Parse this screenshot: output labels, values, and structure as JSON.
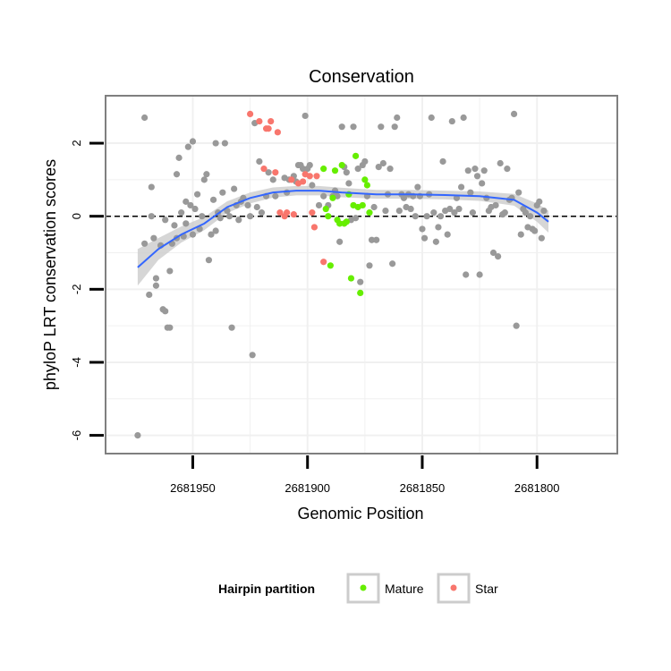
{
  "chart_data": {
    "type": "scatter",
    "title": "Conservation",
    "xlabel": "Genomic Position",
    "ylabel": "phyloP LRT conservation scores",
    "x_reversed": true,
    "xlim": [
      2681988,
      2681765
    ],
    "ylim": [
      -6.5,
      3.3
    ],
    "x_ticks": [
      2681950,
      2681900,
      2681850,
      2681800
    ],
    "x_tick_labels": [
      "2681950",
      "2681900",
      "2681850",
      "2681800"
    ],
    "y_ticks": [
      -6,
      -4,
      -2,
      0,
      2
    ],
    "y_tick_labels": [
      "-6",
      "-4",
      "-2",
      "0",
      "2"
    ],
    "reference_line": {
      "y": 0,
      "style": "dashed",
      "color": "#000000"
    },
    "legend": {
      "title": "Hairpin partition",
      "position": "bottom",
      "entries": [
        {
          "label": "Mature",
          "color": "#66ee00"
        },
        {
          "label": "Star",
          "color": "#f8766d"
        }
      ]
    },
    "colors": {
      "other": "#999999",
      "Mature": "#66ee00",
      "Star": "#f8766d",
      "smooth_line": "#3366ff",
      "smooth_band": "#cccccc",
      "panel_grid": "#f0f0f0",
      "panel_border": "#7f7f7f"
    },
    "grid": true,
    "series": [
      {
        "group": "other",
        "points": [
          [
            2681974,
            -6.0
          ],
          [
            2681971,
            2.7
          ],
          [
            2681971,
            -0.75
          ],
          [
            2681969,
            -2.15
          ],
          [
            2681968,
            0.8
          ],
          [
            2681968,
            0.0
          ],
          [
            2681967,
            -0.6
          ],
          [
            2681966,
            -1.9
          ],
          [
            2681966,
            -1.7
          ],
          [
            2681964,
            -0.8
          ],
          [
            2681963,
            -2.55
          ],
          [
            2681962,
            -2.6
          ],
          [
            2681962,
            -0.1
          ],
          [
            2681961,
            -3.05
          ],
          [
            2681960,
            -3.05
          ],
          [
            2681960,
            -1.5
          ],
          [
            2681959,
            -0.75
          ],
          [
            2681958,
            -0.25
          ],
          [
            2681957,
            -0.6
          ],
          [
            2681957,
            1.15
          ],
          [
            2681956,
            1.6
          ],
          [
            2681955,
            0.1
          ],
          [
            2681954,
            -0.55
          ],
          [
            2681953,
            -0.2
          ],
          [
            2681953,
            0.4
          ],
          [
            2681952,
            1.9
          ],
          [
            2681951,
            0.3
          ],
          [
            2681950,
            -0.5
          ],
          [
            2681950,
            2.05
          ],
          [
            2681949,
            0.2
          ],
          [
            2681948,
            0.6
          ],
          [
            2681947,
            -0.35
          ],
          [
            2681946,
            0.0
          ],
          [
            2681945,
            1.0
          ],
          [
            2681944,
            1.15
          ],
          [
            2681943,
            -1.2
          ],
          [
            2681942,
            -0.5
          ],
          [
            2681941,
            0.45
          ],
          [
            2681940,
            2.0
          ],
          [
            2681940,
            -0.4
          ],
          [
            2681939,
            0.1
          ],
          [
            2681938,
            -0.05
          ],
          [
            2681937,
            0.65
          ],
          [
            2681936,
            2.0
          ],
          [
            2681935,
            0.15
          ],
          [
            2681934,
            0.0
          ],
          [
            2681933,
            -3.05
          ],
          [
            2681932,
            0.75
          ],
          [
            2681931,
            0.3
          ],
          [
            2681930,
            -0.1
          ],
          [
            2681929,
            0.4
          ],
          [
            2681928,
            0.5
          ],
          [
            2681926,
            0.3
          ],
          [
            2681925,
            0.0
          ],
          [
            2681924,
            -3.8
          ],
          [
            2681923,
            2.55
          ],
          [
            2681922,
            0.25
          ],
          [
            2681921,
            1.5
          ],
          [
            2681920,
            0.1
          ],
          [
            2681918,
            0.55
          ],
          [
            2681917,
            1.2
          ],
          [
            2681915,
            1.0
          ],
          [
            2681914,
            0.55
          ],
          [
            2681910,
            1.05
          ],
          [
            2681909,
            0.65
          ],
          [
            2681908,
            1.0
          ],
          [
            2681906,
            1.1
          ],
          [
            2681905,
            0.95
          ],
          [
            2681904,
            1.4
          ],
          [
            2681903,
            1.4
          ],
          [
            2681902,
            1.3
          ],
          [
            2681901,
            2.75
          ],
          [
            2681900,
            1.3
          ],
          [
            2681899,
            1.4
          ],
          [
            2681898,
            0.85
          ],
          [
            2681895,
            0.3
          ],
          [
            2681893,
            0.55
          ],
          [
            2681891,
            0.3
          ],
          [
            2681889,
            0.55
          ],
          [
            2681888,
            0.7
          ],
          [
            2681887,
            0.55
          ],
          [
            2681886,
            -0.7
          ],
          [
            2681885,
            2.45
          ],
          [
            2681884,
            1.35
          ],
          [
            2681883,
            1.2
          ],
          [
            2681882,
            0.9
          ],
          [
            2681881,
            -0.1
          ],
          [
            2681880,
            2.45
          ],
          [
            2681879,
            -0.05
          ],
          [
            2681878,
            1.3
          ],
          [
            2681877,
            -1.8
          ],
          [
            2681876,
            1.4
          ],
          [
            2681875,
            1.5
          ],
          [
            2681874,
            0.55
          ],
          [
            2681873,
            -1.35
          ],
          [
            2681872,
            -0.65
          ],
          [
            2681871,
            0.25
          ],
          [
            2681870,
            -0.65
          ],
          [
            2681869,
            1.35
          ],
          [
            2681868,
            2.45
          ],
          [
            2681867,
            1.45
          ],
          [
            2681866,
            0.15
          ],
          [
            2681865,
            0.6
          ],
          [
            2681864,
            1.3
          ],
          [
            2681863,
            -1.3
          ],
          [
            2681862,
            2.45
          ],
          [
            2681861,
            2.7
          ],
          [
            2681860,
            0.15
          ],
          [
            2681859,
            0.6
          ],
          [
            2681858,
            0.5
          ],
          [
            2681857,
            0.25
          ],
          [
            2681856,
            0.6
          ],
          [
            2681855,
            0.2
          ],
          [
            2681854,
            0.55
          ],
          [
            2681853,
            0.0
          ],
          [
            2681852,
            0.8
          ],
          [
            2681851,
            0.55
          ],
          [
            2681850,
            -0.35
          ],
          [
            2681849,
            -0.6
          ],
          [
            2681848,
            0.0
          ],
          [
            2681847,
            0.6
          ],
          [
            2681846,
            2.7
          ],
          [
            2681845,
            0.1
          ],
          [
            2681844,
            -0.7
          ],
          [
            2681843,
            -0.3
          ],
          [
            2681842,
            0.0
          ],
          [
            2681841,
            1.5
          ],
          [
            2681840,
            0.15
          ],
          [
            2681839,
            -0.5
          ],
          [
            2681838,
            0.2
          ],
          [
            2681837,
            2.6
          ],
          [
            2681836,
            0.1
          ],
          [
            2681835,
            0.5
          ],
          [
            2681834,
            0.2
          ],
          [
            2681833,
            0.8
          ],
          [
            2681832,
            2.7
          ],
          [
            2681831,
            -1.6
          ],
          [
            2681830,
            1.25
          ],
          [
            2681829,
            0.65
          ],
          [
            2681828,
            0.1
          ],
          [
            2681827,
            1.3
          ],
          [
            2681826,
            1.1
          ],
          [
            2681825,
            -1.6
          ],
          [
            2681824,
            0.9
          ],
          [
            2681823,
            1.25
          ],
          [
            2681822,
            0.5
          ],
          [
            2681821,
            0.15
          ],
          [
            2681820,
            0.25
          ],
          [
            2681819,
            -1.0
          ],
          [
            2681818,
            0.3
          ],
          [
            2681817,
            -1.1
          ],
          [
            2681816,
            1.45
          ],
          [
            2681815,
            0.05
          ],
          [
            2681814,
            0.1
          ],
          [
            2681813,
            1.3
          ],
          [
            2681812,
            0.45
          ],
          [
            2681811,
            0.5
          ],
          [
            2681810,
            2.8
          ],
          [
            2681809,
            -3.0
          ],
          [
            2681808,
            0.65
          ],
          [
            2681807,
            -0.5
          ],
          [
            2681806,
            0.2
          ],
          [
            2681805,
            0.1
          ],
          [
            2681804,
            -0.3
          ],
          [
            2681803,
            0.0
          ],
          [
            2681802,
            -0.35
          ],
          [
            2681801,
            -0.4
          ],
          [
            2681800,
            0.3
          ],
          [
            2681799,
            0.4
          ],
          [
            2681798,
            -0.6
          ],
          [
            2681797,
            0.15
          ]
        ]
      },
      {
        "group": "Star",
        "points": [
          [
            2681925,
            2.8
          ],
          [
            2681921,
            2.6
          ],
          [
            2681919,
            1.3
          ],
          [
            2681918,
            2.4
          ],
          [
            2681917,
            2.4
          ],
          [
            2681916,
            2.6
          ],
          [
            2681914,
            1.2
          ],
          [
            2681913,
            2.3
          ],
          [
            2681912,
            0.1
          ],
          [
            2681910,
            0.0
          ],
          [
            2681909,
            0.1
          ],
          [
            2681907,
            1.0
          ],
          [
            2681906,
            0.05
          ],
          [
            2681904,
            0.9
          ],
          [
            2681902,
            0.95
          ],
          [
            2681901,
            1.15
          ],
          [
            2681899,
            1.1
          ],
          [
            2681898,
            0.1
          ],
          [
            2681897,
            -0.3
          ],
          [
            2681896,
            1.1
          ],
          [
            2681893,
            -1.25
          ]
        ]
      },
      {
        "group": "Mature",
        "points": [
          [
            2681893,
            1.3
          ],
          [
            2681892,
            0.2
          ],
          [
            2681891,
            0.0
          ],
          [
            2681890,
            -1.35
          ],
          [
            2681889,
            0.5
          ],
          [
            2681888,
            1.25
          ],
          [
            2681887,
            -0.1
          ],
          [
            2681886,
            -0.2
          ],
          [
            2681885,
            1.4
          ],
          [
            2681884,
            -0.2
          ],
          [
            2681883,
            -0.15
          ],
          [
            2681882,
            0.6
          ],
          [
            2681881,
            -1.7
          ],
          [
            2681880,
            0.3
          ],
          [
            2681879,
            1.65
          ],
          [
            2681878,
            0.25
          ],
          [
            2681877,
            -2.1
          ],
          [
            2681876,
            0.3
          ],
          [
            2681875,
            1.0
          ],
          [
            2681874,
            0.85
          ],
          [
            2681873,
            0.1
          ]
        ]
      }
    ],
    "smooth": {
      "method": "loess",
      "x": [
        2681974,
        2681965,
        2681955,
        2681945,
        2681935,
        2681925,
        2681915,
        2681905,
        2681895,
        2681885,
        2681870,
        2681855,
        2681840,
        2681825,
        2681810,
        2681800,
        2681795
      ],
      "y": [
        -1.4,
        -0.9,
        -0.5,
        -0.2,
        0.25,
        0.5,
        0.65,
        0.7,
        0.7,
        0.65,
        0.6,
        0.6,
        0.58,
        0.55,
        0.45,
        0.1,
        -0.15
      ],
      "ci_half_width": [
        0.5,
        0.3,
        0.22,
        0.18,
        0.16,
        0.15,
        0.14,
        0.13,
        0.13,
        0.13,
        0.12,
        0.12,
        0.12,
        0.13,
        0.16,
        0.25,
        0.3
      ]
    }
  }
}
